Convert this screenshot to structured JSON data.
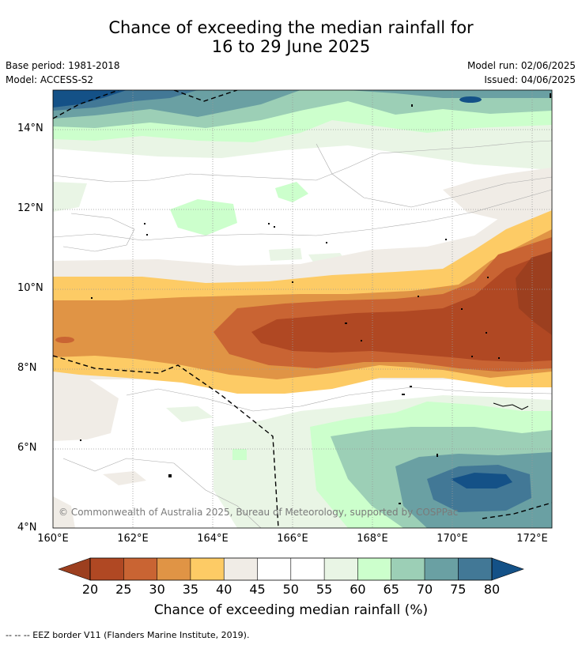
{
  "header": {
    "title_line1": "Chance of exceeding the median rainfall for",
    "title_line2": "16 to 29 June 2025",
    "base_period": "Base period: 1981-2018",
    "model": "Model: ACCESS-S2",
    "model_run": "Model run: 02/06/2025",
    "issued": "Issued: 04/06/2025"
  },
  "map": {
    "lon_ticks": [
      "160°E",
      "162°E",
      "164°E",
      "166°E",
      "168°E",
      "170°E",
      "172°E"
    ],
    "lat_ticks": [
      "14°N",
      "12°N",
      "10°N",
      "8°N",
      "6°N",
      "4°N"
    ],
    "copyright": "© Commonwealth of Australia 2025, Bureau of Meteorology, supported by COSPPac"
  },
  "colorbar": {
    "ticks": [
      "20",
      "25",
      "30",
      "35",
      "40",
      "45",
      "50",
      "55",
      "60",
      "65",
      "70",
      "75",
      "80"
    ],
    "label": "Chance of exceeding median rainfall (%)",
    "colors": {
      "below20": "#9c3f1f",
      "b20_25": "#b04823",
      "b25_30": "#c96433",
      "b30_35": "#e09445",
      "b35_40": "#fdcb65",
      "b40_45": "#f0ece6",
      "b45_55": "#ffffff",
      "b55_60": "#e9f5e5",
      "b60_65": "#ccffcc",
      "b65_70": "#9ccfb6",
      "b70_75": "#6aa0a3",
      "b75_80": "#427896",
      "above80": "#145187"
    }
  },
  "legend": {
    "eez": "-- -- -- EEZ border V11 (Flanders Marine Institute, 2019)."
  }
}
